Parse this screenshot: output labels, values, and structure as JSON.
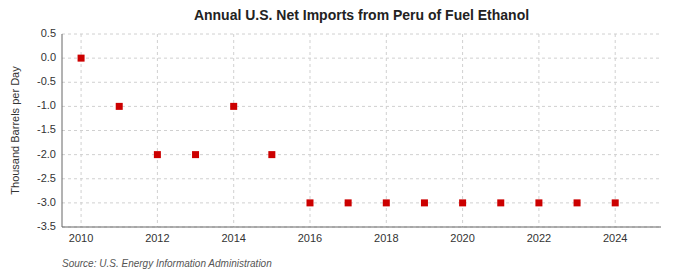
{
  "chart_data": {
    "type": "scatter",
    "title": "Annual U.S. Net Imports from Peru of Fuel Ethanol",
    "ylabel": "Thousand Barrels per Day",
    "source": "Source: U.S. Energy Information Administration",
    "x": [
      2010,
      2011,
      2012,
      2013,
      2014,
      2015,
      2016,
      2017,
      2018,
      2019,
      2020,
      2021,
      2022,
      2023,
      2024
    ],
    "values": [
      0.0,
      -1.0,
      -2.0,
      -2.0,
      -1.0,
      -2.0,
      -3.0,
      -3.0,
      -3.0,
      -3.0,
      -3.0,
      -3.0,
      -3.0,
      -3.0,
      -3.0
    ],
    "color": "#cc0000",
    "marker": "square",
    "xlim": [
      2009.5,
      2025.2
    ],
    "xticks": [
      2010,
      2012,
      2014,
      2016,
      2018,
      2020,
      2022,
      2024
    ],
    "ylim": [
      -3.5,
      0.5
    ],
    "yticks": [
      0.5,
      {
        "value": 0.0,
        "label": "0.0"
      },
      -0.5,
      {
        "value": -1.0,
        "label": "-1.0"
      },
      -1.5,
      {
        "value": -2.0,
        "label": "-2.0"
      },
      -2.5,
      {
        "value": -3.0,
        "label": "-3.0"
      },
      -3.5
    ],
    "grid": true
  }
}
